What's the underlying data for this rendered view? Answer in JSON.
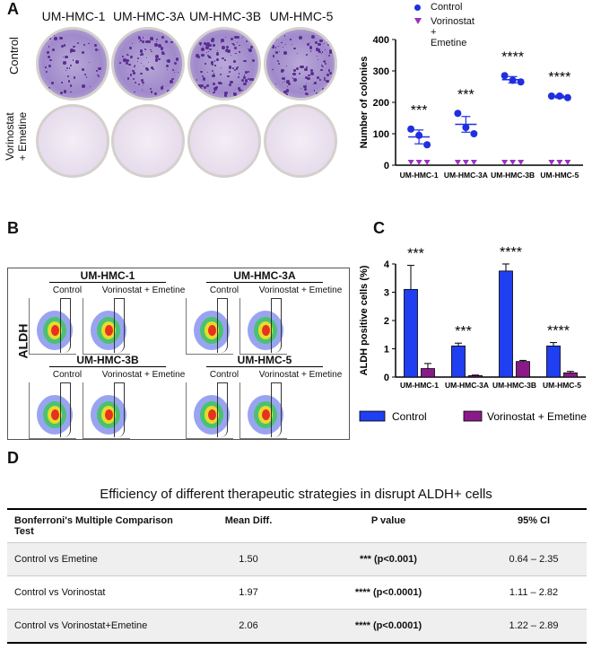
{
  "panels": {
    "a": "A",
    "b": "B",
    "c": "C",
    "d": "D"
  },
  "panelA": {
    "cell_lines": [
      "UM-HMC-1",
      "UM-HMC-3A",
      "UM-HMC-3B",
      "UM-HMC-5"
    ],
    "row_labels": {
      "control": "Control",
      "treated_1": "Vorinostat",
      "treated_2": "+ Emetine"
    }
  },
  "panelB": {
    "ylabel": "ALDH",
    "groups": [
      "UM-HMC-1",
      "UM-HMC-3A",
      "UM-HMC-3B",
      "UM-HMC-5"
    ],
    "sub_control": "Control",
    "sub_treated": "Vorinostat + Emetine"
  },
  "chart_data": [
    {
      "type": "scatter",
      "ylabel": "Number of colonies",
      "categories": [
        "UM-HMC-1",
        "UM-HMC-3A",
        "UM-HMC-3B",
        "UM-HMC-5"
      ],
      "ylim": [
        0,
        400
      ],
      "yticks": [
        "0",
        "100",
        "200",
        "300",
        "400"
      ],
      "legend": [
        "Control",
        "Vorinostat + Emetine"
      ],
      "series": [
        {
          "name": "Control",
          "color": "#1f2fe0",
          "points": [
            [
              115,
              95,
              65
            ],
            [
              165,
              120,
              100
            ],
            [
              285,
              270,
              265
            ],
            [
              220,
              220,
              215
            ]
          ],
          "mean": [
            90,
            130,
            272,
            218
          ],
          "err": [
            22,
            25,
            10,
            4
          ]
        },
        {
          "name": "Vorinostat + Emetine",
          "color": "#9b30c2",
          "points": [
            [
              0,
              0,
              0
            ],
            [
              0,
              0,
              0
            ],
            [
              0,
              0,
              0
            ],
            [
              0,
              0,
              0
            ]
          ]
        }
      ],
      "annotations": [
        "***",
        "***",
        "****",
        "****"
      ]
    },
    {
      "type": "bar",
      "ylabel": "ALDH positive cells  (%)",
      "categories": [
        "UM-HMC-1",
        "UM-HMC-3A",
        "UM-HMC-3B",
        "UM-HMC-5"
      ],
      "ylim": [
        0,
        4
      ],
      "yticks": [
        "0",
        "1",
        "2",
        "3",
        "4"
      ],
      "series": [
        {
          "name": "Control",
          "color": "#1f3ff0",
          "values": [
            3.1,
            1.1,
            3.75,
            1.1
          ],
          "err": [
            0.85,
            0.1,
            0.25,
            0.12
          ]
        },
        {
          "name": "Vorinostat + Emetine",
          "color": "#8a1a8a",
          "values": [
            0.3,
            0.05,
            0.55,
            0.15
          ],
          "err": [
            0.18,
            0.02,
            0.04,
            0.05
          ]
        }
      ],
      "annotations": [
        "***",
        "***",
        "****",
        "****"
      ]
    }
  ],
  "panelD": {
    "title": "Efficiency of different therapeutic strategies in disrupt ALDH+ cells",
    "headers": [
      "Bonferroni's Multiple Comparison Test",
      "Mean Diff.",
      "P value",
      "95% CI"
    ],
    "rows": [
      [
        "Control vs Emetine",
        "1.50",
        "*** (p<0.001)",
        "0.64 – 2.35"
      ],
      [
        "Control vs Vorinostat",
        "1.97",
        "**** (p<0.0001)",
        "1.11 – 2.82"
      ],
      [
        "Control vs Vorinostat+Emetine",
        "2.06",
        "**** (p<0.0001)",
        "1.22 – 2.89"
      ]
    ]
  }
}
